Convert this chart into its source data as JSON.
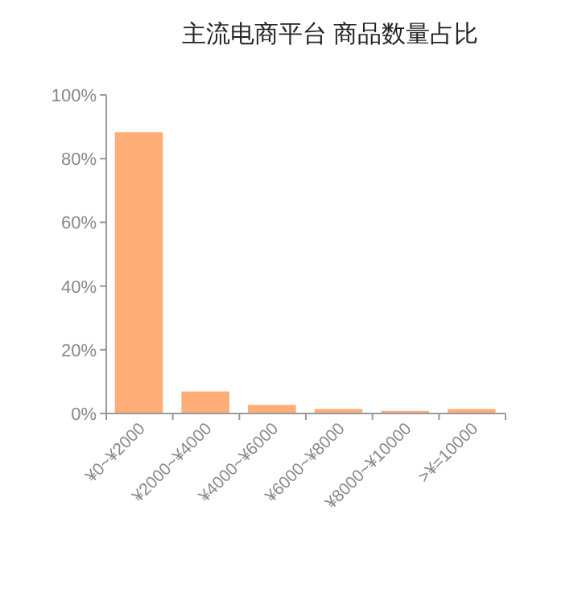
{
  "chart_data": {
    "type": "bar",
    "title": "主流电商平台 商品数量占比",
    "categories": [
      "¥0~¥2000",
      "¥2000~¥4000",
      "¥4000~¥6000",
      "¥6000~¥8000",
      "¥8000~¥10000",
      ">¥=10000"
    ],
    "values": [
      88.3,
      6.9,
      2.7,
      1.4,
      0.8,
      1.4
    ],
    "color": "#ffad77",
    "ylim": [
      0,
      100
    ],
    "yticks": [
      {
        "value": 0,
        "label": "0%"
      },
      {
        "value": 20,
        "label": "20%"
      },
      {
        "value": 40,
        "label": "40%"
      },
      {
        "value": 60,
        "label": "60%"
      },
      {
        "value": 80,
        "label": "80%"
      },
      {
        "value": 100,
        "label": "100%"
      }
    ],
    "grid": false
  }
}
